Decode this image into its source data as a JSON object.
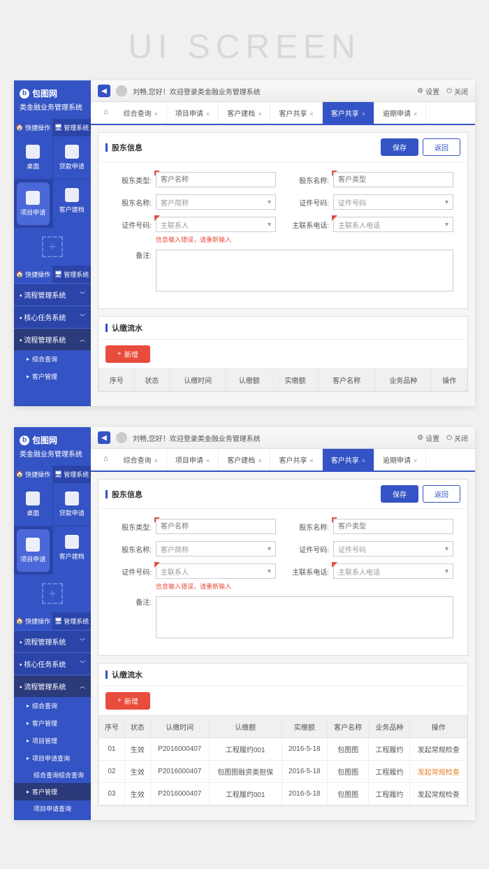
{
  "ui_title": "UI SCREEN",
  "logo": {
    "name": "包图网",
    "system": "类金融业务管理系统"
  },
  "side_tabs": {
    "quick": "快捷操作",
    "manage": "管理系统"
  },
  "quick_items": [
    {
      "label": "桌面"
    },
    {
      "label": "贷款申请"
    },
    {
      "label": "项目申请"
    },
    {
      "label": "客户建档"
    }
  ],
  "side_sections": {
    "process": "流程管理系统",
    "core": "核心任务系统",
    "process2": "流程管理系统"
  },
  "side_subs": {
    "query": "综合查询",
    "customer": "客户管理",
    "project": "项目管理",
    "proj_query": "项目申请查询",
    "combo_query": "综合查询综合查询",
    "cust_mgmt": "客户管理",
    "proj_apply_q": "项目申请查询"
  },
  "topbar": {
    "welcome": "刘畅,您好！欢迎登录类金融业务管理系统",
    "settings": "设置",
    "close": "关闭"
  },
  "tabs": [
    "综合查询",
    "项目申请",
    "客户建档",
    "客户共享",
    "客户共享",
    "逾期申请"
  ],
  "panel1": {
    "title": "股东信息",
    "save": "保存",
    "back": "返回"
  },
  "form": {
    "f1_label": "股东类型:",
    "f1_ph": "客户名称",
    "f2_label": "股东名称:",
    "f2_ph": "客户类型",
    "f3_label": "股东名称:",
    "f3_ph": "客户简称",
    "f4_label": "证件号码:",
    "f4_ph": "证件号码",
    "f5_label": "证件号码:",
    "f5_ph": "主联系人",
    "f6_label": "主联系电话:",
    "f6_ph": "主联系人电话",
    "error": "信息输入错误，请重新输入",
    "remark_label": "备注:"
  },
  "panel2": {
    "title": "认缴流水",
    "add": "新增"
  },
  "table": {
    "headers": [
      "序号",
      "状态",
      "认缴时间",
      "认缴额",
      "实缴额",
      "客户名称",
      "业务品种",
      "操作"
    ],
    "rows": [
      [
        "01",
        "生效",
        "P2016000407",
        "工程履约001",
        "2016-5-18",
        "包图图",
        "工程履约",
        "发起常规检查"
      ],
      [
        "02",
        "生效",
        "P2016000407",
        "包图图融资类担保",
        "2016-5-18",
        "包图图",
        "工程履约",
        "发起常规检查"
      ],
      [
        "03",
        "生效",
        "P2016000407",
        "工程履约001",
        "2016-5-18",
        "包图图",
        "工程履约",
        "发起常规检查"
      ]
    ]
  }
}
